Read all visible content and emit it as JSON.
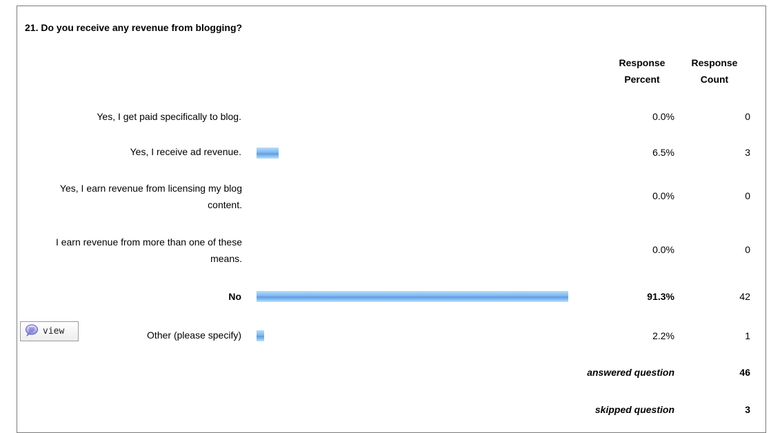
{
  "question": {
    "title": "21. Do you receive any revenue from blogging?"
  },
  "headers": {
    "percent": [
      "Response",
      "Percent"
    ],
    "count": [
      "Response",
      "Count"
    ]
  },
  "rows": [
    {
      "label": "Yes, I get paid specifically to blog.",
      "percent": "0.0%",
      "count": "0",
      "fraction": 0.0
    },
    {
      "label": "Yes, I receive ad revenue.",
      "percent": "6.5%",
      "count": "3",
      "fraction": 0.065
    },
    {
      "label": "Yes, I earn revenue from licensing my blog content.",
      "percent": "0.0%",
      "count": "0",
      "fraction": 0.0
    },
    {
      "label": "I earn revenue from more than one of these means.",
      "percent": "0.0%",
      "count": "0",
      "fraction": 0.0
    },
    {
      "label": "No",
      "percent": "91.3%",
      "count": "42",
      "fraction": 0.913
    },
    {
      "label": "Other (please specify)",
      "percent": "2.2%",
      "count": "1",
      "fraction": 0.022
    }
  ],
  "view_button": {
    "label": "view",
    "icon": "speech-bubble-icon"
  },
  "summary": {
    "answered_label": "answered question",
    "answered_value": "46",
    "skipped_label": "skipped question",
    "skipped_value": "3"
  },
  "colors": {
    "bar": "#7fb6ee",
    "border": "#7a7a7a"
  }
}
